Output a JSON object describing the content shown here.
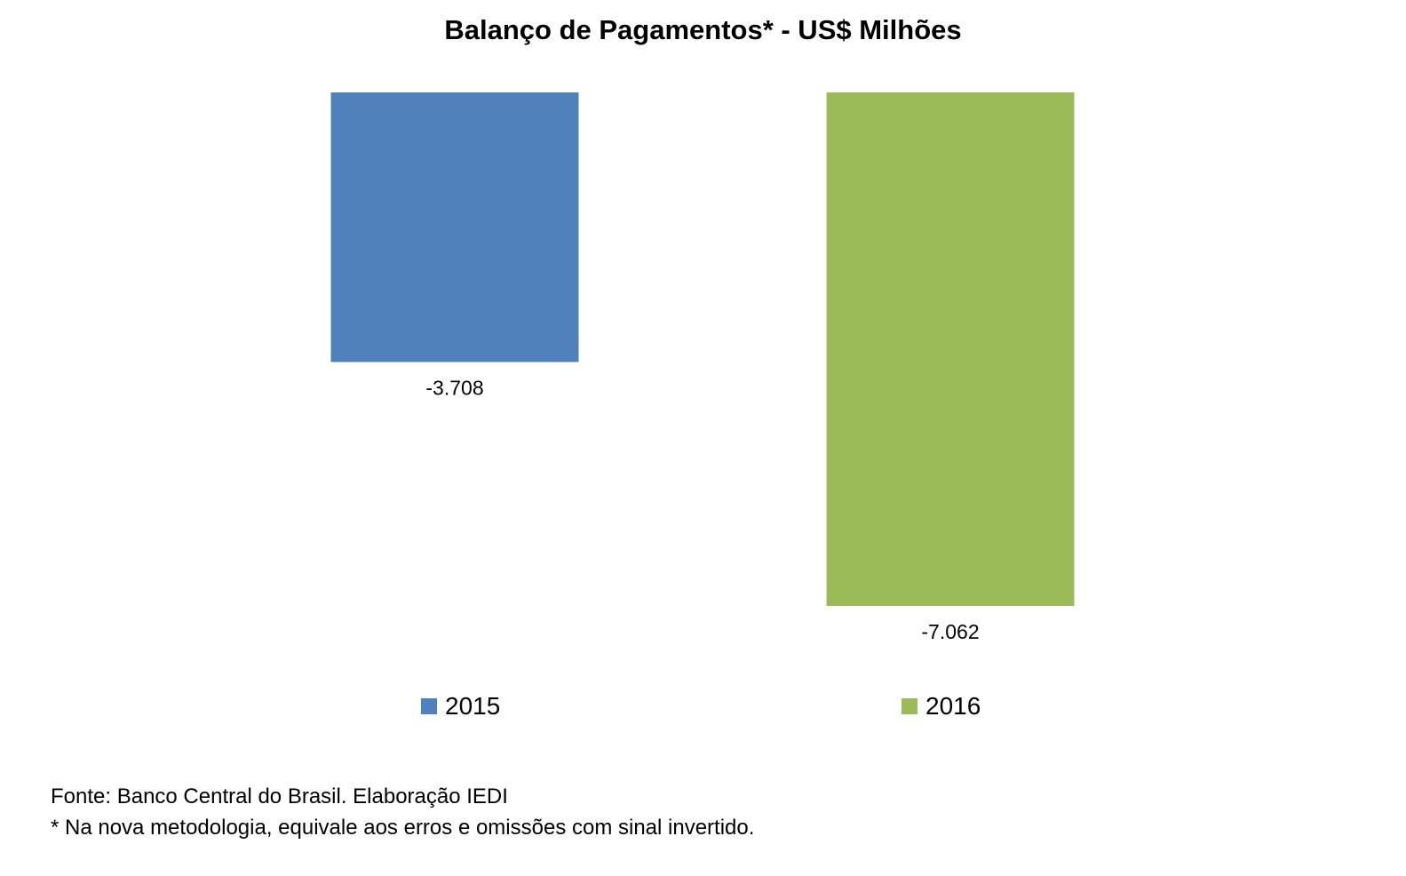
{
  "chart_data": {
    "type": "bar",
    "title": "Balanço de Pagamentos* - US$ Milhões",
    "categories": [
      "2015",
      "2016"
    ],
    "series": [
      {
        "name": "2015",
        "values": [
          -3708,
          null
        ],
        "color": "#4F81BD",
        "label": "-3.708"
      },
      {
        "name": "2016",
        "values": [
          null,
          -7062
        ],
        "color": "#9BBB59",
        "label": "-7.062"
      }
    ],
    "values": [
      -3708,
      -7062
    ],
    "ylim": [
      -7062,
      0
    ],
    "grid": false,
    "legend_position": "bottom",
    "xlabel": "",
    "ylabel": ""
  },
  "notes": {
    "source": "Fonte: Banco Central do Brasil. Elaboração IEDI",
    "footnote": "* Na nova metodologia, equivale aos erros e omissões com sinal invertido."
  }
}
